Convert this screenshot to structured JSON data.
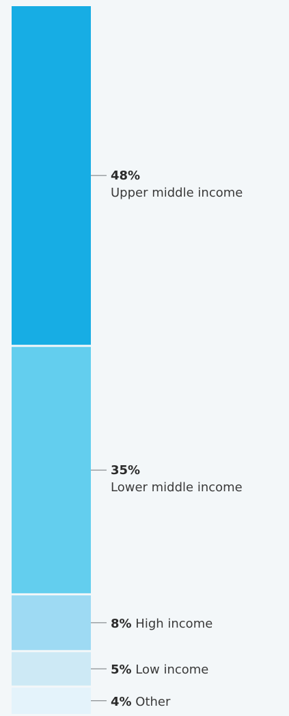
{
  "chart_data": {
    "type": "bar",
    "stacked": true,
    "orientation": "vertical",
    "unit": "%",
    "segments": [
      {
        "value": 48,
        "value_label": "48%",
        "label": "Upper middle income",
        "color": "#17ade4",
        "label_layout": "two-line"
      },
      {
        "value": 35,
        "value_label": "35%",
        "label": "Lower middle income",
        "color": "#63ceee",
        "label_layout": "two-line"
      },
      {
        "value": 8,
        "value_label": "8%",
        "label": "High income",
        "color": "#9edaf3",
        "label_layout": "inline"
      },
      {
        "value": 5,
        "value_label": "5%",
        "label": "Low income",
        "color": "#cde9f5",
        "label_layout": "inline"
      },
      {
        "value": 4,
        "value_label": "4%",
        "label": "Other",
        "color": "#e4f3fb",
        "label_layout": "inline"
      }
    ]
  }
}
